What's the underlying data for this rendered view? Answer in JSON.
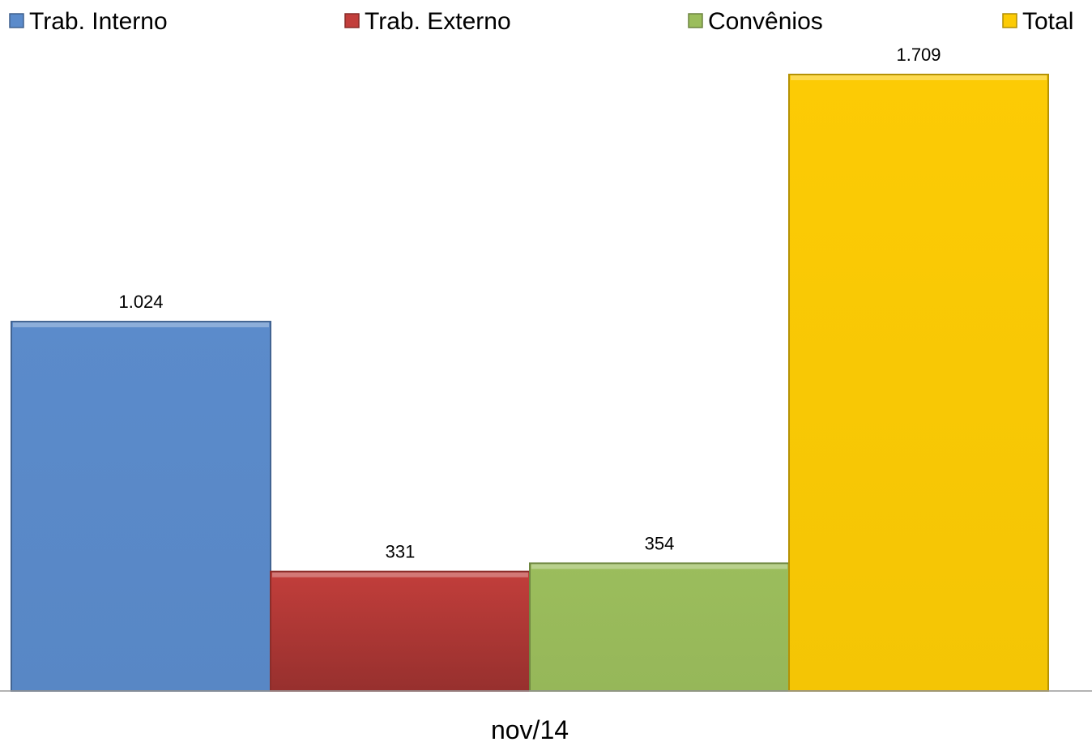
{
  "chart_data": {
    "type": "bar",
    "categories": [
      "nov/14"
    ],
    "series": [
      {
        "name": "Trab. Interno",
        "values": [
          1024
        ],
        "label": "1.024",
        "color": "#5b8bcb"
      },
      {
        "name": "Trab. Externo",
        "values": [
          331
        ],
        "label": "331",
        "color": "#c23e3b"
      },
      {
        "name": "Convênios",
        "values": [
          354
        ],
        "label": "354",
        "color": "#9bbd5c"
      },
      {
        "name": "Total",
        "values": [
          1709
        ],
        "label": "1.709",
        "color": "#fccb05"
      }
    ],
    "ylim": [
      0,
      1850
    ],
    "legend_position": "top",
    "grid": false,
    "title": "",
    "xlabel": "",
    "ylabel": ""
  }
}
